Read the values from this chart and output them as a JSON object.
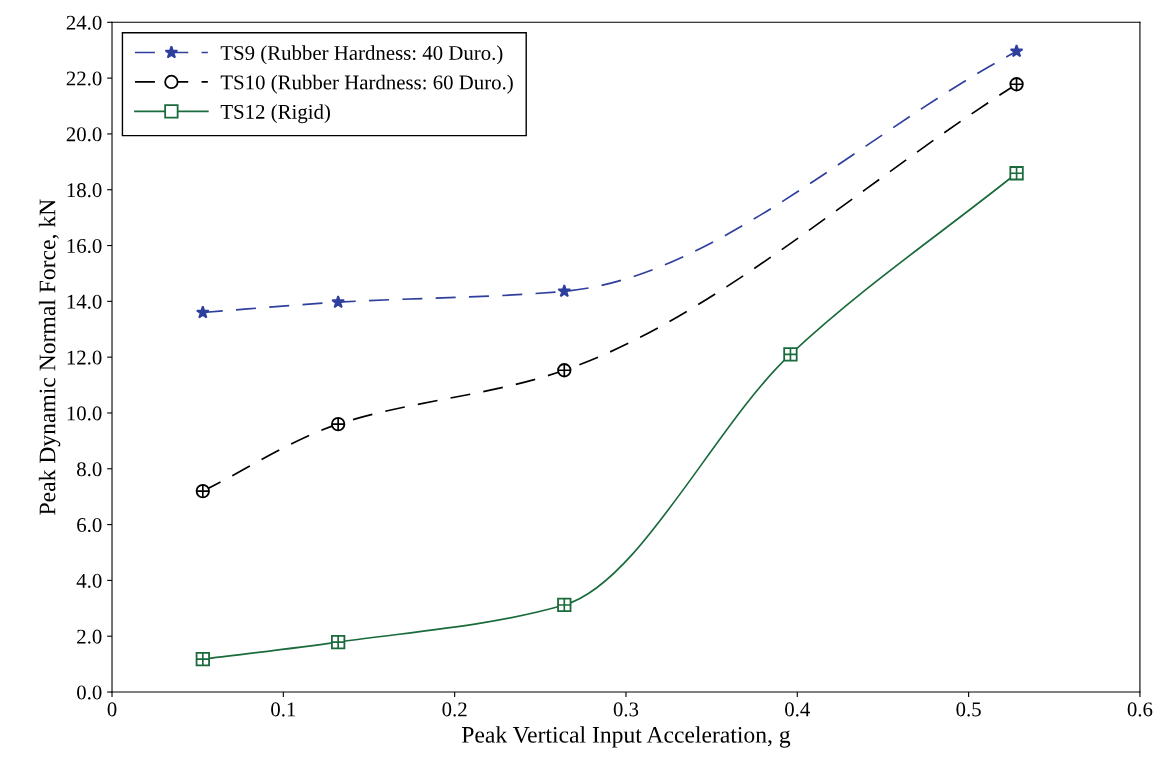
{
  "chart_data": {
    "type": "line",
    "xlabel": "Peak Vertical Input Acceleration, g",
    "ylabel": "Peak Dynamic Normal Force, kN",
    "x": [
      0.053,
      0.132,
      0.264,
      0.396,
      0.528
    ],
    "series": [
      {
        "name": "TS9 (Rubber Hardness: 40 Duro.)",
        "color": "#2e3f9e",
        "values": [
          13.6,
          13.97,
          14.36,
          null,
          22.96
        ],
        "marker": "star",
        "line_style": "dashed"
      },
      {
        "name": "TS10 (Rubber Hardness: 60 Duro.)",
        "color": "#000000",
        "values": [
          7.2,
          9.6,
          11.53,
          null,
          21.78
        ],
        "marker": "circle",
        "line_style": "dashed"
      },
      {
        "name": "TS12 (Rigid)",
        "color": "#1a6b3c",
        "values": [
          1.18,
          1.79,
          3.12,
          12.1,
          18.59
        ],
        "marker": "square",
        "line_style": "solid"
      }
    ],
    "xlim": [
      0,
      0.6
    ],
    "xticks": [
      0,
      0.1,
      0.2,
      0.3,
      0.4,
      0.5,
      0.6
    ],
    "ylim": [
      0,
      24
    ],
    "yticks": [
      {
        "value": 0,
        "label": "0.0"
      },
      {
        "value": 2,
        "label": "2.0"
      },
      {
        "value": 4,
        "label": "4.0"
      },
      {
        "value": 6,
        "label": "6.0"
      },
      {
        "value": 8,
        "label": "8.0"
      },
      {
        "value": 10,
        "label": "10.0"
      },
      {
        "value": 12,
        "label": "12.0"
      },
      {
        "value": 14,
        "label": "14.0"
      },
      {
        "value": 16,
        "label": "16.0"
      },
      {
        "value": 18,
        "label": "18.0"
      },
      {
        "value": 20,
        "label": "20.0"
      },
      {
        "value": 22,
        "label": "22.0"
      },
      {
        "value": 24,
        "label": "24.0"
      }
    ],
    "grid": false,
    "legend": "top left"
  }
}
